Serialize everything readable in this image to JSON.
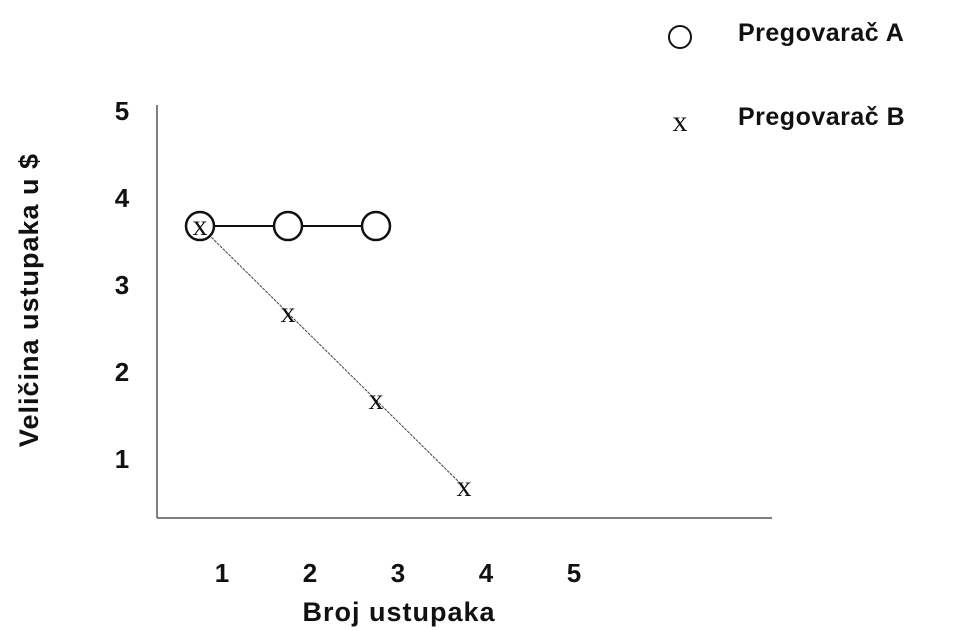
{
  "chart_data": {
    "type": "line",
    "xlabel": "Broj ustupaka",
    "ylabel": "Veličina ustupaka u $",
    "x_ticks": [
      "1",
      "2",
      "3",
      "4",
      "5"
    ],
    "y_ticks": [
      "1",
      "2",
      "3",
      "4",
      "5"
    ],
    "xlim": [
      0.5,
      5.5
    ],
    "ylim": [
      0.4,
      5.1
    ],
    "grid": false,
    "legend_position": "top-right",
    "series": [
      {
        "name": "Pregovarač A",
        "marker": "circle",
        "x": [
          1,
          2,
          3
        ],
        "y": [
          3.85,
          3.85,
          3.85
        ]
      },
      {
        "name": "Pregovarač B",
        "marker": "x",
        "marker_label": "x",
        "x": [
          1,
          2,
          3,
          4
        ],
        "y": [
          3.85,
          2.85,
          1.85,
          0.85
        ]
      }
    ]
  }
}
